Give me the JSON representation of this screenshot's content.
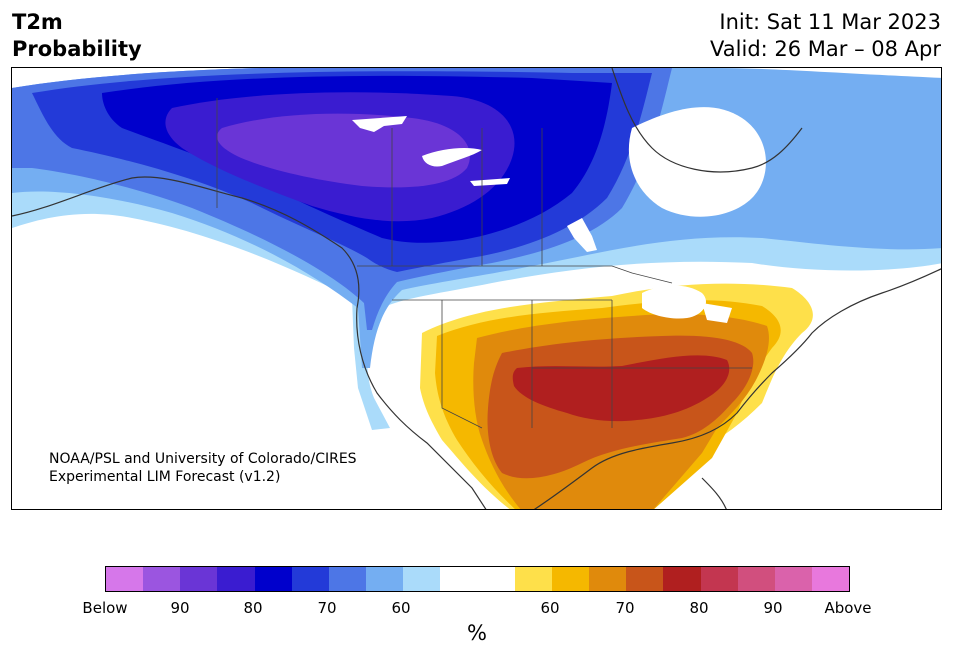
{
  "header": {
    "title_line1": "T2m",
    "title_line2": "Probability",
    "init_text": "Init: Sat 11 Mar 2023",
    "valid_text": "Valid: 26 Mar – 08 Apr"
  },
  "map": {
    "credit_line1": "NOAA/PSL and University of Colorado/CIRES",
    "credit_line2": "Experimental LIM Forecast (v1.2)"
  },
  "legend": {
    "colors": [
      "#d677ea",
      "#9b55e0",
      "#6a35d6",
      "#3a1cd0",
      "#0000cc",
      "#233ad8",
      "#4d76e6",
      "#74aef2",
      "#aadbfa",
      "#ffffff",
      "#ffffff",
      "#fee04a",
      "#f5b800",
      "#e08a0c",
      "#c8551a",
      "#b01f1f",
      "#c33650",
      "#d14f7e",
      "#da62ab",
      "#e878dd"
    ],
    "ticks": [
      "Below",
      "90",
      "80",
      "70",
      "60",
      "60",
      "70",
      "80",
      "90",
      "Above"
    ],
    "unit": "%"
  }
}
